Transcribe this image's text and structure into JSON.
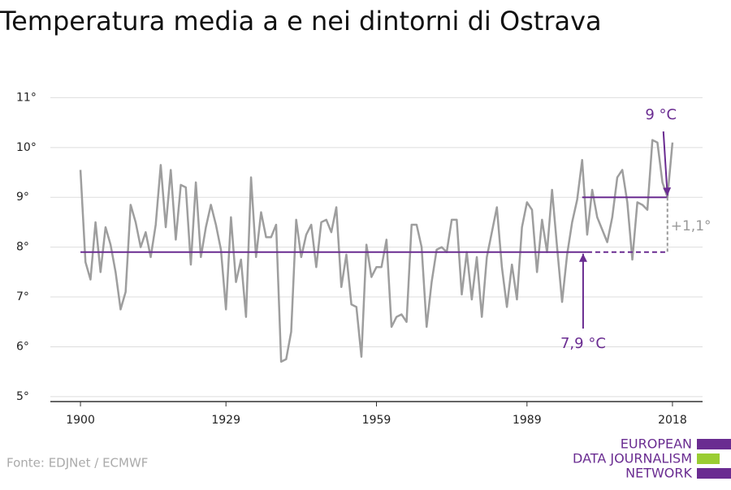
{
  "chart_data": {
    "type": "line",
    "title": "Temperatura media a e nei dintorni di Ostrava",
    "source": "Fonte: EDJNet / ECMWF",
    "logo": [
      "EUROPEAN",
      "DATA JOURNALISM",
      "NETWORK"
    ],
    "x": [
      1900,
      1901,
      1902,
      1903,
      1904,
      1905,
      1906,
      1907,
      1908,
      1909,
      1910,
      1911,
      1912,
      1913,
      1914,
      1915,
      1916,
      1917,
      1918,
      1919,
      1920,
      1921,
      1922,
      1923,
      1924,
      1925,
      1926,
      1927,
      1928,
      1929,
      1930,
      1931,
      1932,
      1933,
      1934,
      1935,
      1936,
      1937,
      1938,
      1939,
      1940,
      1941,
      1942,
      1943,
      1944,
      1945,
      1946,
      1947,
      1948,
      1949,
      1950,
      1951,
      1952,
      1953,
      1954,
      1955,
      1956,
      1957,
      1958,
      1959,
      1960,
      1961,
      1962,
      1963,
      1964,
      1965,
      1966,
      1967,
      1968,
      1969,
      1970,
      1971,
      1972,
      1973,
      1974,
      1975,
      1976,
      1977,
      1978,
      1979,
      1980,
      1981,
      1982,
      1983,
      1984,
      1985,
      1986,
      1987,
      1988,
      1989,
      1990,
      1991,
      1992,
      1993,
      1994,
      1995,
      1996,
      1997,
      1998,
      1999,
      2000,
      2001,
      2002,
      2003,
      2004,
      2005,
      2006,
      2007,
      2008,
      2009,
      2010,
      2011,
      2012,
      2013,
      2014,
      2015,
      2016,
      2017,
      2018
    ],
    "series": [
      {
        "color": "#9e9e9e",
        "values": [
          9.55,
          7.7,
          7.35,
          8.5,
          7.5,
          8.4,
          8.05,
          7.5,
          6.75,
          7.1,
          8.85,
          8.5,
          8.0,
          8.3,
          7.8,
          8.45,
          9.65,
          8.4,
          9.55,
          8.15,
          9.25,
          9.2,
          7.65,
          9.3,
          7.8,
          8.4,
          8.85,
          8.45,
          7.95,
          6.75,
          8.6,
          7.3,
          7.75,
          6.6,
          9.4,
          7.8,
          8.7,
          8.2,
          8.2,
          8.45,
          5.7,
          5.75,
          6.3,
          8.55,
          7.8,
          8.25,
          8.45,
          7.6,
          8.5,
          8.55,
          8.3,
          8.8,
          7.2,
          7.85,
          6.85,
          6.8,
          5.8,
          8.05,
          7.4,
          7.6,
          7.6,
          8.15,
          6.4,
          6.6,
          6.65,
          6.5,
          8.45,
          8.45,
          8.0,
          6.4,
          7.3,
          7.95,
          8.0,
          7.9,
          8.55,
          8.55,
          7.05,
          7.9,
          6.95,
          7.8,
          6.6,
          7.8,
          8.3,
          8.8,
          7.6,
          6.8,
          7.65,
          6.95,
          8.4,
          8.9,
          8.75,
          7.5,
          8.55,
          7.9,
          9.15,
          8.0,
          6.9,
          7.85,
          8.5,
          8.95,
          9.75,
          8.25,
          9.15,
          8.6,
          8.35,
          8.1,
          8.6,
          9.4,
          9.55,
          8.9,
          7.75,
          8.9,
          8.85,
          8.75,
          10.15,
          10.1,
          9.3,
          9.0,
          10.1
        ]
      }
    ],
    "reference_lines": [
      {
        "label": "7,9 °C",
        "value": 7.9,
        "from": 1900,
        "to": 2001,
        "color": "#6a2c91"
      },
      {
        "label": "9 °C",
        "value": 9.0,
        "from": 2000,
        "to": 2017,
        "color": "#6a2c91"
      }
    ],
    "difference_label": "+1,1°",
    "xlim": [
      1894,
      2024
    ],
    "xticks": [
      1900,
      1929,
      1959,
      1989,
      2018
    ],
    "ylim": [
      4.9,
      11.3
    ],
    "yticks": [
      {
        "value": 5,
        "label": "5°"
      },
      {
        "value": 6,
        "label": "6°"
      },
      {
        "value": 7,
        "label": "7°"
      },
      {
        "value": 8,
        "label": "8°"
      },
      {
        "value": 9,
        "label": "9°"
      },
      {
        "value": 10,
        "label": "10°"
      },
      {
        "value": 11,
        "label": "11°"
      }
    ],
    "grid": true
  }
}
